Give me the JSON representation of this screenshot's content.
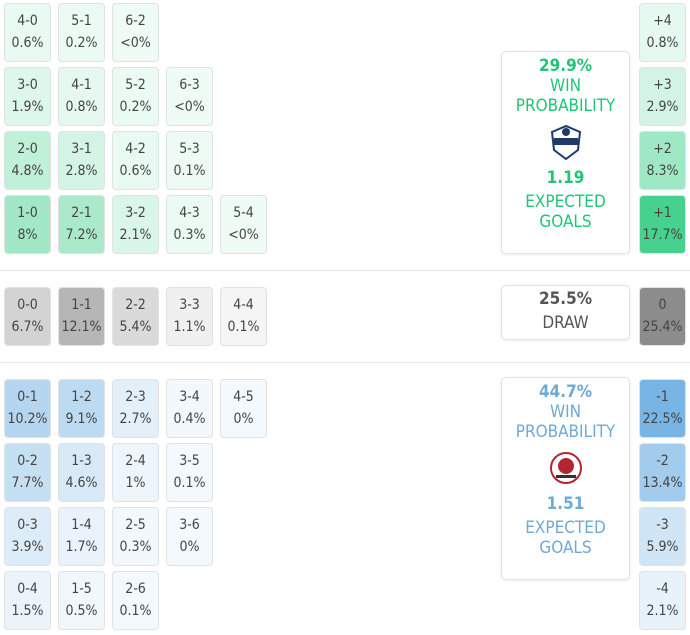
{
  "home": {
    "rows": [
      [
        {
          "score": "4-0",
          "prob": "0.6%"
        },
        {
          "score": "5-1",
          "prob": "0.2%"
        },
        {
          "score": "6-2",
          "prob": "<0%"
        }
      ],
      [
        {
          "score": "3-0",
          "prob": "1.9%"
        },
        {
          "score": "4-1",
          "prob": "0.8%"
        },
        {
          "score": "5-2",
          "prob": "0.2%"
        },
        {
          "score": "6-3",
          "prob": "<0%"
        }
      ],
      [
        {
          "score": "2-0",
          "prob": "4.8%"
        },
        {
          "score": "3-1",
          "prob": "2.8%"
        },
        {
          "score": "4-2",
          "prob": "0.6%"
        },
        {
          "score": "5-3",
          "prob": "0.1%"
        }
      ],
      [
        {
          "score": "1-0",
          "prob": "8%"
        },
        {
          "score": "2-1",
          "prob": "7.2%"
        },
        {
          "score": "3-2",
          "prob": "2.1%"
        },
        {
          "score": "4-3",
          "prob": "0.3%"
        },
        {
          "score": "5-4",
          "prob": "<0%"
        }
      ]
    ],
    "margins": [
      {
        "label": "+4",
        "prob": "0.8%"
      },
      {
        "label": "+3",
        "prob": "2.9%"
      },
      {
        "label": "+2",
        "prob": "8.3%"
      },
      {
        "label": "+1",
        "prob": "17.7%"
      }
    ],
    "summary": {
      "win_probability": "29.9%",
      "win_label": "WIN PROBABILITY",
      "expected_goals": "1.19",
      "expected_label": "EXPECTED GOALS"
    }
  },
  "draw": {
    "rows": [
      [
        {
          "score": "0-0",
          "prob": "6.7%"
        },
        {
          "score": "1-1",
          "prob": "12.1%"
        },
        {
          "score": "2-2",
          "prob": "5.4%"
        },
        {
          "score": "3-3",
          "prob": "1.1%"
        },
        {
          "score": "4-4",
          "prob": "0.1%"
        }
      ]
    ],
    "margins": [
      {
        "label": "0",
        "prob": "25.4%"
      }
    ],
    "summary": {
      "probability": "25.5%",
      "label": "DRAW"
    }
  },
  "away": {
    "rows": [
      [
        {
          "score": "0-1",
          "prob": "10.2%"
        },
        {
          "score": "1-2",
          "prob": "9.1%"
        },
        {
          "score": "2-3",
          "prob": "2.7%"
        },
        {
          "score": "3-4",
          "prob": "0.4%"
        },
        {
          "score": "4-5",
          "prob": "0%"
        }
      ],
      [
        {
          "score": "0-2",
          "prob": "7.7%"
        },
        {
          "score": "1-3",
          "prob": "4.6%"
        },
        {
          "score": "2-4",
          "prob": "1%"
        },
        {
          "score": "3-5",
          "prob": "0.1%"
        }
      ],
      [
        {
          "score": "0-3",
          "prob": "3.9%"
        },
        {
          "score": "1-4",
          "prob": "1.7%"
        },
        {
          "score": "2-5",
          "prob": "0.3%"
        },
        {
          "score": "3-6",
          "prob": "0%"
        }
      ],
      [
        {
          "score": "0-4",
          "prob": "1.5%"
        },
        {
          "score": "1-5",
          "prob": "0.5%"
        },
        {
          "score": "2-6",
          "prob": "0.1%"
        }
      ]
    ],
    "margins": [
      {
        "label": "-1",
        "prob": "22.5%"
      },
      {
        "label": "-2",
        "prob": "13.4%"
      },
      {
        "label": "-3",
        "prob": "5.9%"
      },
      {
        "label": "-4",
        "prob": "2.1%"
      }
    ],
    "summary": {
      "win_probability": "44.7%",
      "win_label": "WIN PROBABILITY",
      "expected_goals": "1.51",
      "expected_label": "EXPECTED GOALS"
    }
  }
}
